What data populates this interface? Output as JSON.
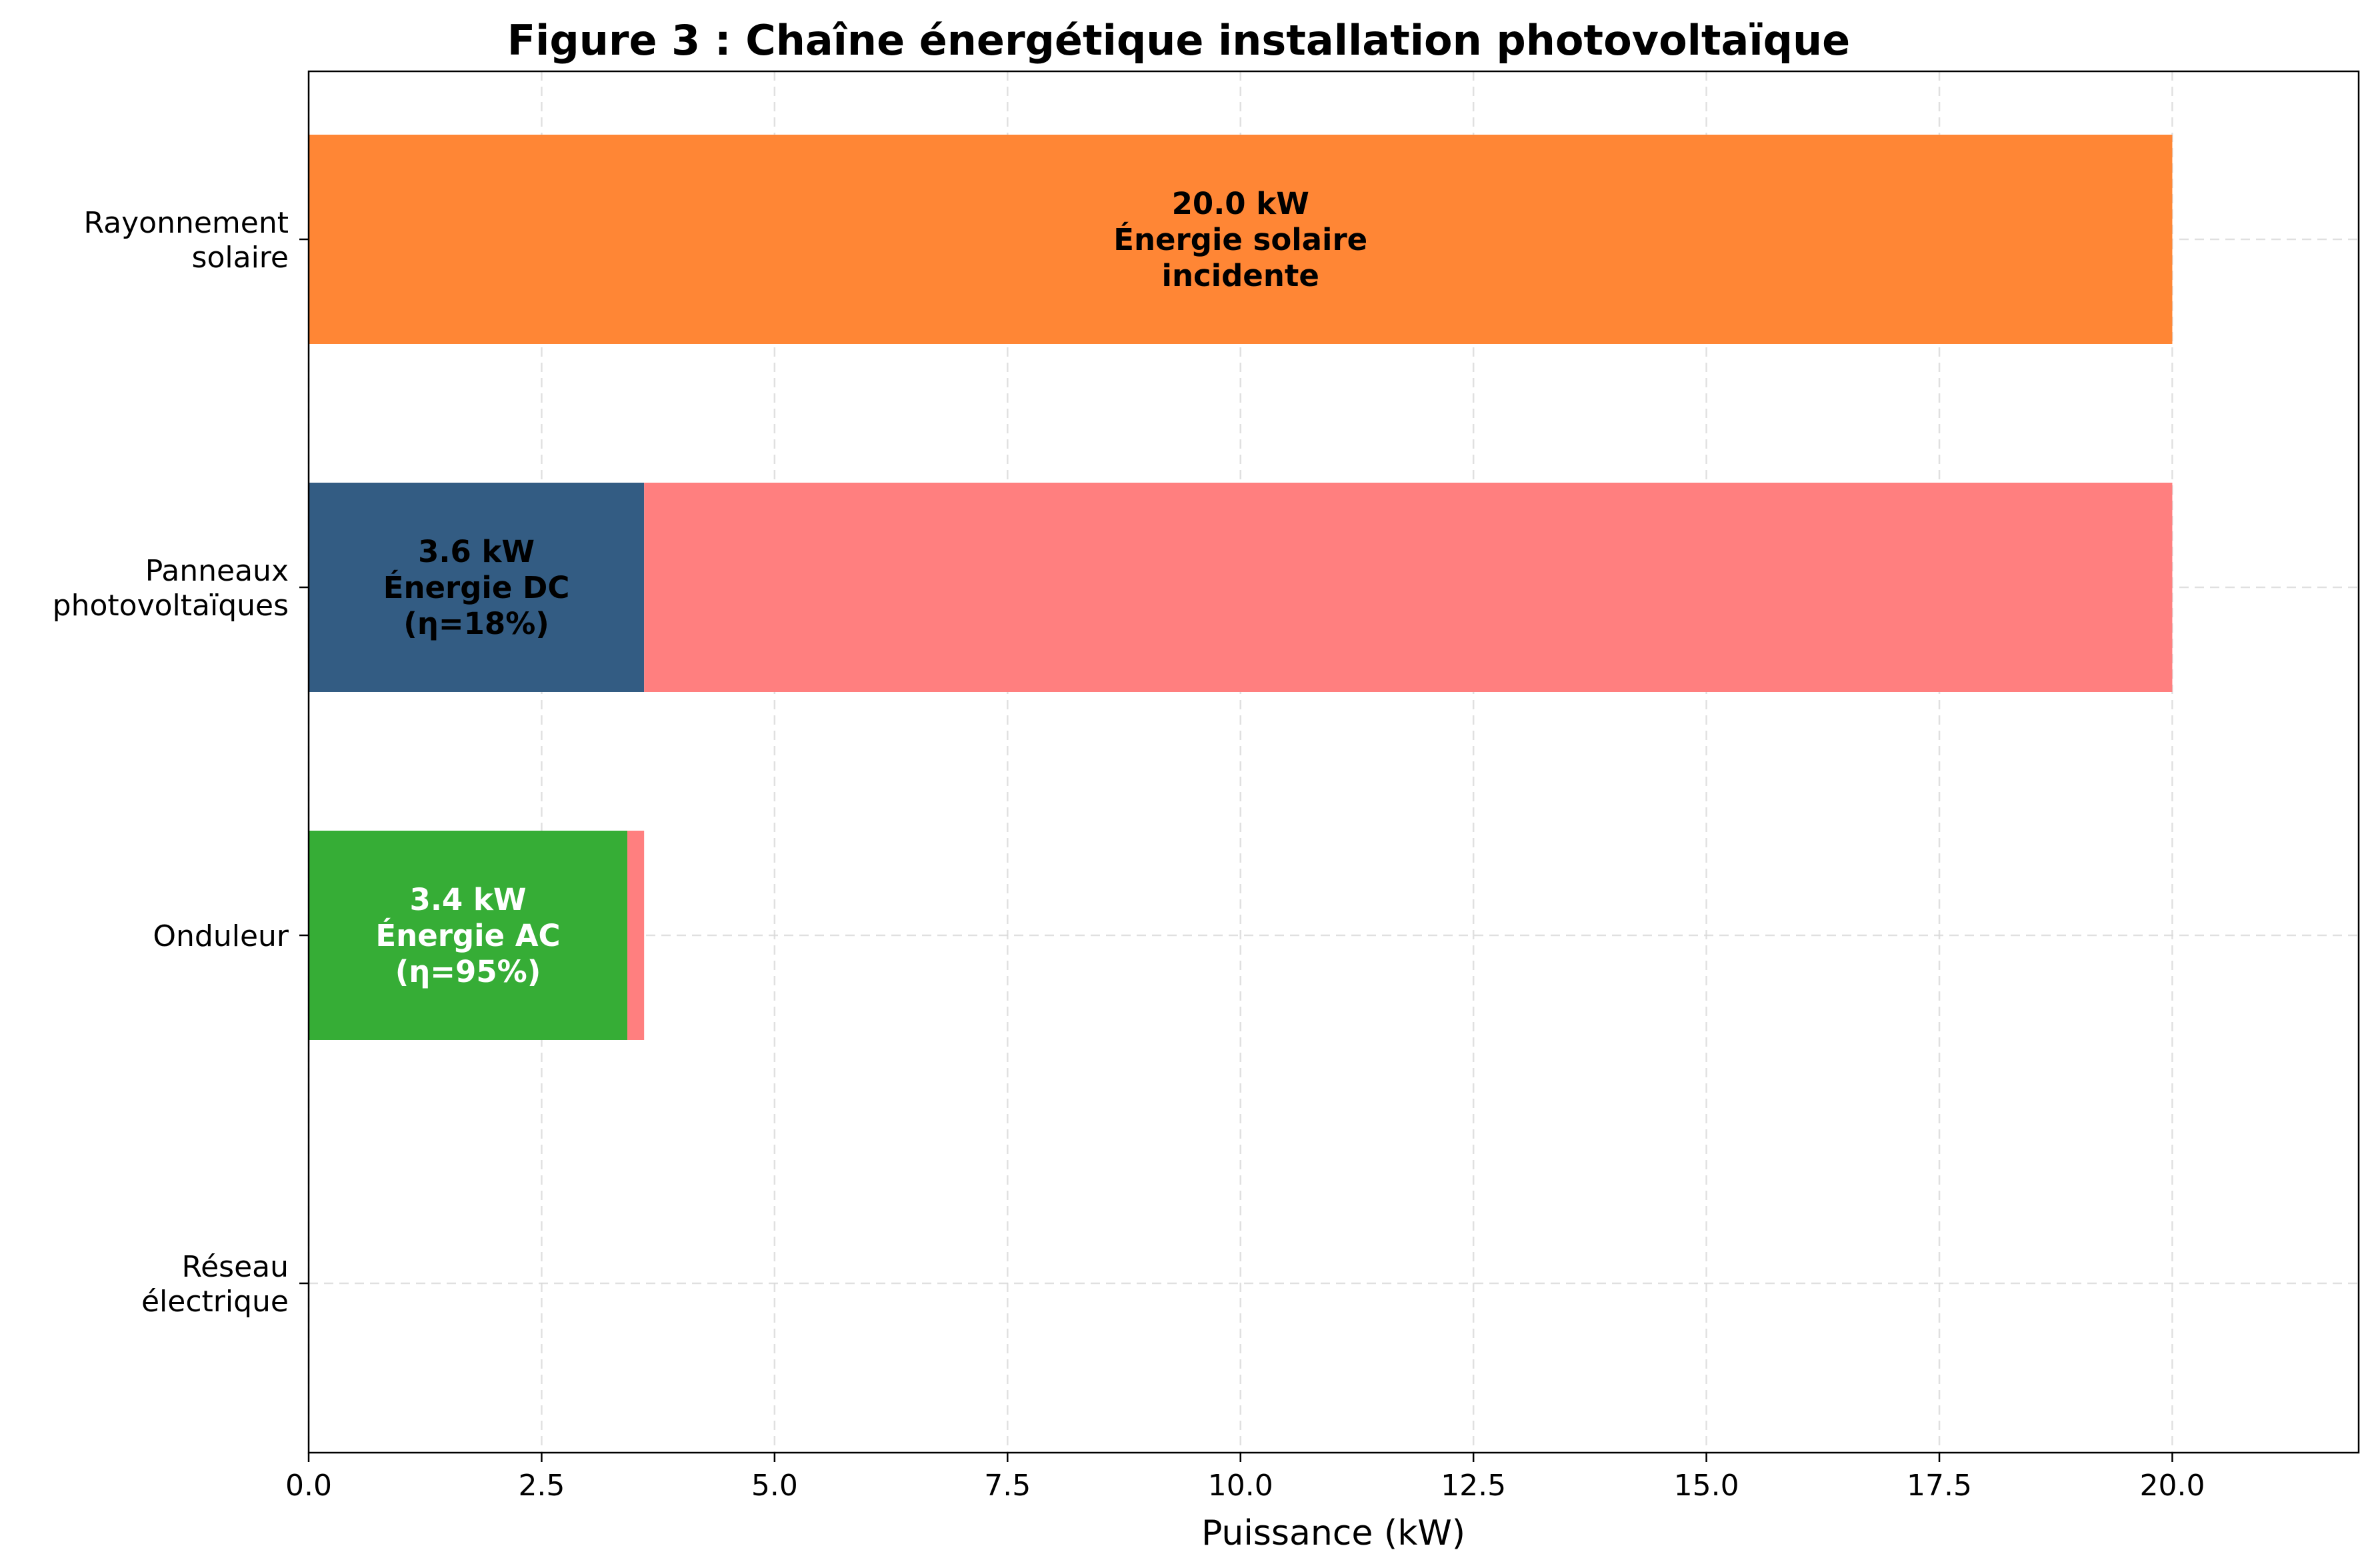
{
  "chart_data": {
    "type": "bar",
    "orientation": "horizontal",
    "stacked": true,
    "title": "Figure 3 : Chaîne énergétique installation photovoltaïque",
    "xlabel": "Puissance (kW)",
    "ylabel": "",
    "xlim": [
      0,
      22
    ],
    "xticks": [
      "0.0",
      "2.5",
      "5.0",
      "7.5",
      "10.0",
      "12.5",
      "15.0",
      "17.5",
      "20.0"
    ],
    "grid": true,
    "categories": [
      [
        "Rayonnement",
        "solaire"
      ],
      [
        "Panneaux",
        "photovoltaïques"
      ],
      [
        "Onduleur"
      ],
      [
        "Réseau",
        "électrique"
      ]
    ],
    "bars": [
      {
        "category_index": 0,
        "segments": [
          {
            "value": 20.0,
            "color": "#ff8635"
          }
        ],
        "label": [
          "20.0 kW",
          "Énergie solaire",
          "incidente"
        ],
        "label_color": "#000000",
        "label_center": 10.0
      },
      {
        "category_index": 1,
        "segments": [
          {
            "value": 3.6,
            "color": "#335c83"
          },
          {
            "value": 16.4,
            "color": "#ff7f7f"
          }
        ],
        "label": [
          "3.6 kW",
          "Énergie DC",
          "(η=18%)"
        ],
        "label_color": "#000000",
        "label_center": 1.8
      },
      {
        "category_index": 2,
        "segments": [
          {
            "value": 3.42,
            "color": "#36ad36"
          },
          {
            "value": 0.18,
            "color": "#ff7f7f"
          }
        ],
        "label": [
          "3.4 kW",
          "Énergie AC",
          "(η=95%)"
        ],
        "label_color": "#ffffff",
        "label_center": 1.71
      }
    ]
  }
}
